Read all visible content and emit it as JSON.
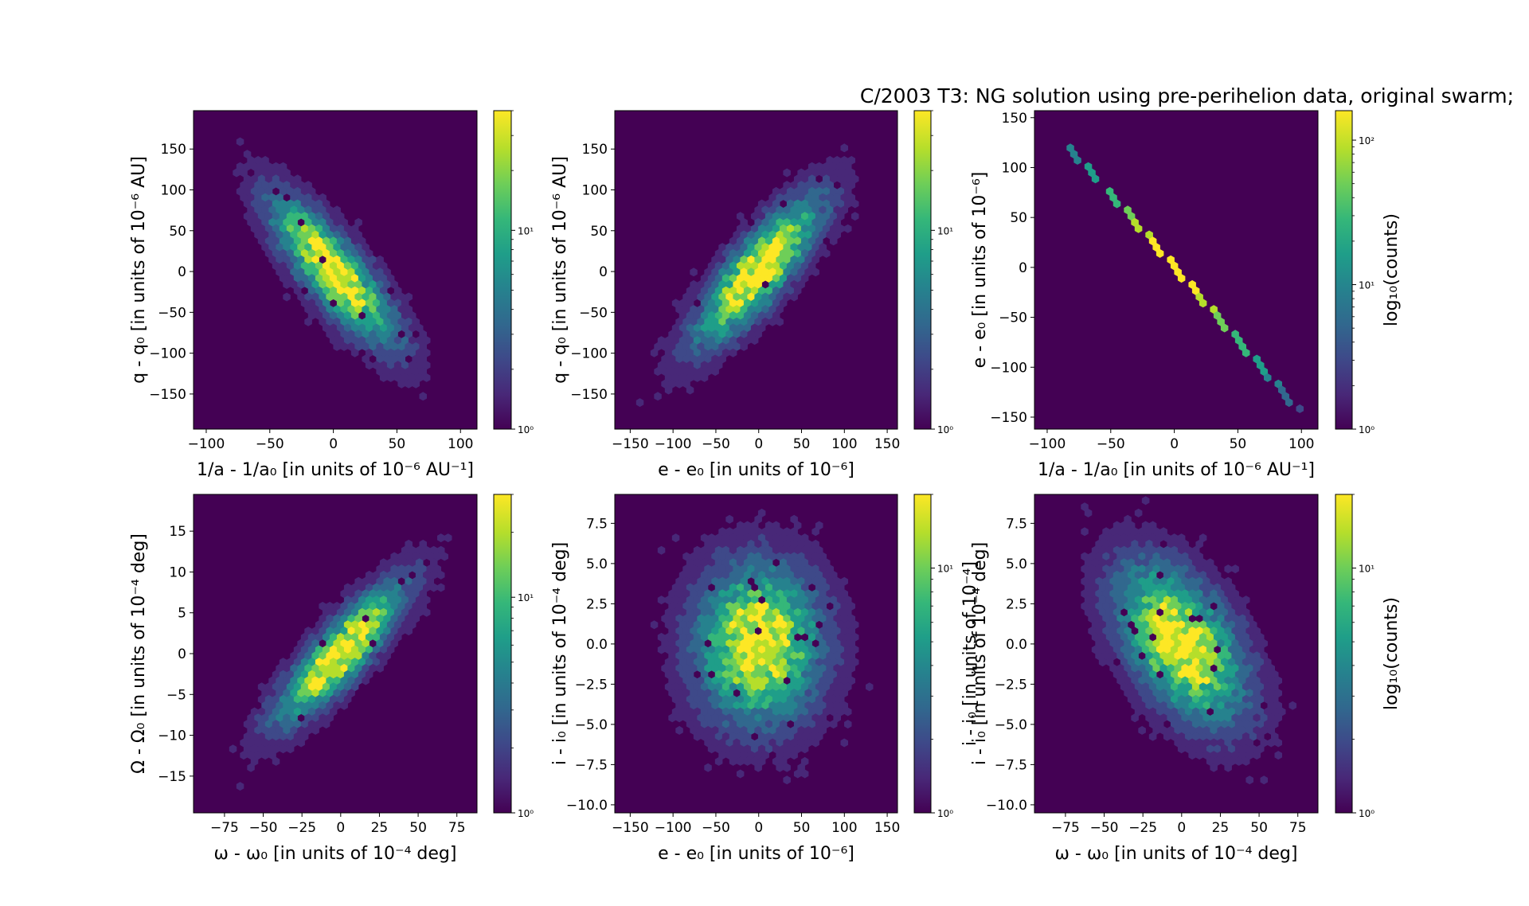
{
  "figure_title": "C/2003 T3:  NG solution using pre-perihelion data, original swarm;",
  "colormap": [
    "#440154",
    "#482878",
    "#3e4989",
    "#31688e",
    "#26828e",
    "#1f9e89",
    "#35b779",
    "#6ece58",
    "#b5de2b",
    "#fde725"
  ],
  "background_color": "#440154",
  "chart_data": [
    {
      "type": "heatmap",
      "subtype": "hexbin",
      "xlabel": "1/a - 1/a₀ [in units of 10⁻⁶ AU⁻¹]",
      "ylabel": "q - q₀ [in units of 10⁻⁶ AU]",
      "xlim": [
        -110,
        113
      ],
      "ylim": [
        -193,
        197
      ],
      "xticks": [
        "−100",
        "−50",
        "0",
        "50",
        "100"
      ],
      "xtick_values": [
        -100,
        -50,
        0,
        50,
        100
      ],
      "yticks": [
        "150",
        "100",
        "50",
        "0",
        "−50",
        "−100",
        "−150"
      ],
      "ytick_values": [
        150,
        100,
        50,
        0,
        -50,
        -100,
        -150
      ],
      "x_sigma": 30,
      "y_sigma": 55,
      "correlation": -0.82,
      "colorbar": {
        "scale": "log",
        "range": [
          1,
          40
        ],
        "tick_labels": [
          "10¹",
          "10⁰"
        ],
        "tick_values": [
          10,
          1
        ],
        "label": ""
      }
    },
    {
      "type": "heatmap",
      "subtype": "hexbin",
      "xlabel": "e - e₀ [in units of 10⁻⁶]",
      "ylabel": "q - q₀ [in units of 10⁻⁶ AU]",
      "xlim": [
        -168,
        162
      ],
      "ylim": [
        -193,
        197
      ],
      "xticks": [
        "−150",
        "−100",
        "−50",
        "0",
        "50",
        "100",
        "150"
      ],
      "xtick_values": [
        -150,
        -100,
        -50,
        0,
        50,
        100,
        150
      ],
      "yticks": [
        "150",
        "100",
        "50",
        "0",
        "−50",
        "−100",
        "−150"
      ],
      "ytick_values": [
        150,
        100,
        50,
        0,
        -50,
        -100,
        -150
      ],
      "x_sigma": 45,
      "y_sigma": 55,
      "correlation": 0.82,
      "colorbar": {
        "scale": "log",
        "range": [
          1,
          40
        ],
        "tick_labels": [
          "10¹",
          "10⁰"
        ],
        "tick_values": [
          10,
          1
        ],
        "label": ""
      }
    },
    {
      "type": "heatmap",
      "subtype": "hexbin",
      "xlabel": "1/a - 1/a₀ [in units of 10⁻⁶ AU⁻¹]",
      "ylabel": "e - e₀ [in units of 10⁻⁶]",
      "xlim": [
        -110,
        113
      ],
      "ylim": [
        -162,
        157
      ],
      "xticks": [
        "−100",
        "−50",
        "0",
        "50",
        "100"
      ],
      "xtick_values": [
        -100,
        -50,
        0,
        50,
        100
      ],
      "yticks": [
        "150",
        "100",
        "50",
        "0",
        "−50",
        "−100",
        "−150"
      ],
      "ytick_values": [
        150,
        100,
        50,
        0,
        -50,
        -100,
        -150
      ],
      "line": {
        "x_range": [
          -84,
          100
        ],
        "slope": -1.46
      },
      "colorbar": {
        "scale": "log",
        "range": [
          1,
          160
        ],
        "tick_labels": [
          "10²",
          "10¹",
          "10⁰"
        ],
        "tick_values": [
          100,
          10,
          1
        ],
        "label": "log₁₀(counts)"
      }
    },
    {
      "type": "heatmap",
      "subtype": "hexbin",
      "xlabel": "ω - ω₀ [in units of 10⁻⁴ deg]",
      "ylabel": "Ω - Ω₀ [in units of 10⁻⁴ deg]",
      "xlim": [
        -95,
        88
      ],
      "ylim": [
        -19.5,
        19.5
      ],
      "xticks": [
        "−75",
        "−50",
        "−25",
        "0",
        "25",
        "50",
        "75"
      ],
      "xtick_values": [
        -75,
        -50,
        -25,
        0,
        25,
        50,
        75
      ],
      "yticks": [
        "15",
        "10",
        "5",
        "0",
        "−5",
        "−10",
        "−15"
      ],
      "ytick_values": [
        15,
        10,
        5,
        0,
        -5,
        -10,
        -15
      ],
      "x_sigma": 25,
      "y_sigma": 5.2,
      "correlation": 0.85,
      "colorbar": {
        "scale": "log",
        "range": [
          1,
          30
        ],
        "tick_labels": [
          "10¹",
          "10⁰"
        ],
        "tick_values": [
          10,
          1
        ],
        "label": ""
      }
    },
    {
      "type": "heatmap",
      "subtype": "hexbin",
      "xlabel": "e - e₀ [in units of 10⁻⁶]",
      "ylabel": "i - i₀ [in units of 10⁻⁴ deg]",
      "xlim": [
        -168,
        162
      ],
      "ylim": [
        -10.5,
        9.3
      ],
      "xticks": [
        "−150",
        "−100",
        "−50",
        "0",
        "50",
        "100",
        "150"
      ],
      "xtick_values": [
        -150,
        -100,
        -50,
        0,
        50,
        100,
        150
      ],
      "yticks": [
        "7.5",
        "5.0",
        "2.5",
        "0.0",
        "−2.5",
        "−5.0",
        "−7.5",
        "−10.0"
      ],
      "ytick_values": [
        7.5,
        5,
        2.5,
        0,
        -2.5,
        -5,
        -7.5,
        -10
      ],
      "x_sigma": 45,
      "y_sigma": 3.0,
      "correlation": 0.0,
      "colorbar": {
        "scale": "log",
        "range": [
          1,
          20
        ],
        "tick_labels": [
          "10¹",
          "10⁰"
        ],
        "tick_values": [
          10,
          1
        ],
        "label": "i - i₀ [in units of 10⁻⁴]"
      }
    },
    {
      "type": "heatmap",
      "subtype": "hexbin",
      "xlabel": "ω - ω₀ [in units of 10⁻⁴ deg]",
      "ylabel": "i - i₀ [in units of 10⁻⁴ deg]",
      "xlim": [
        -95,
        88
      ],
      "ylim": [
        -10.5,
        9.3
      ],
      "xticks": [
        "−75",
        "−50",
        "−25",
        "0",
        "25",
        "50",
        "75"
      ],
      "xtick_values": [
        -75,
        -50,
        -25,
        0,
        25,
        50,
        75
      ],
      "yticks": [
        "7.5",
        "5.0",
        "2.5",
        "0.0",
        "−2.5",
        "−5.0",
        "−7.5",
        "−10.0"
      ],
      "ytick_values": [
        7.5,
        5,
        2.5,
        0,
        -2.5,
        -5,
        -7.5,
        -10
      ],
      "x_sigma": 25,
      "y_sigma": 3.0,
      "correlation": -0.5,
      "colorbar": {
        "scale": "log",
        "range": [
          1,
          20
        ],
        "tick_labels": [
          "10¹",
          "10⁰"
        ],
        "tick_values": [
          10,
          1
        ],
        "label": "log₁₀(counts)"
      }
    }
  ]
}
